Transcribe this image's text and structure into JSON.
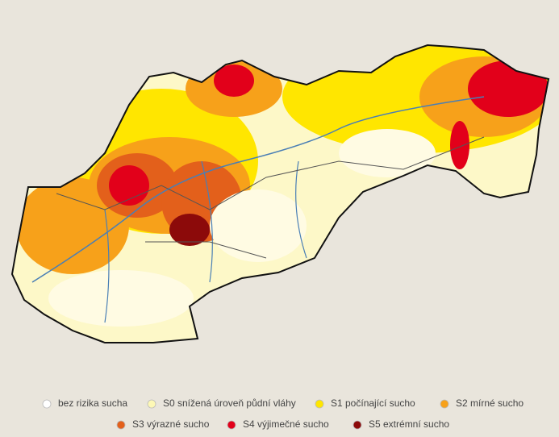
{
  "legend": {
    "items": [
      {
        "label": "bez rizika sucha",
        "color": "#ffffff"
      },
      {
        "label": "S0 snížená úroveň půdní vláhy",
        "color": "#fdf8b6"
      },
      {
        "label": "S1 počínající sucho",
        "color": "#ffe600"
      },
      {
        "label": "S2 mírné sucho",
        "color": "#f7a11a"
      },
      {
        "label": "S3 výrazné sucho",
        "color": "#e3601b"
      },
      {
        "label": "S4 výjimečné sucho",
        "color": "#e2001a"
      },
      {
        "label": "S5 extrémní sucho",
        "color": "#8c0a0a"
      }
    ]
  }
}
